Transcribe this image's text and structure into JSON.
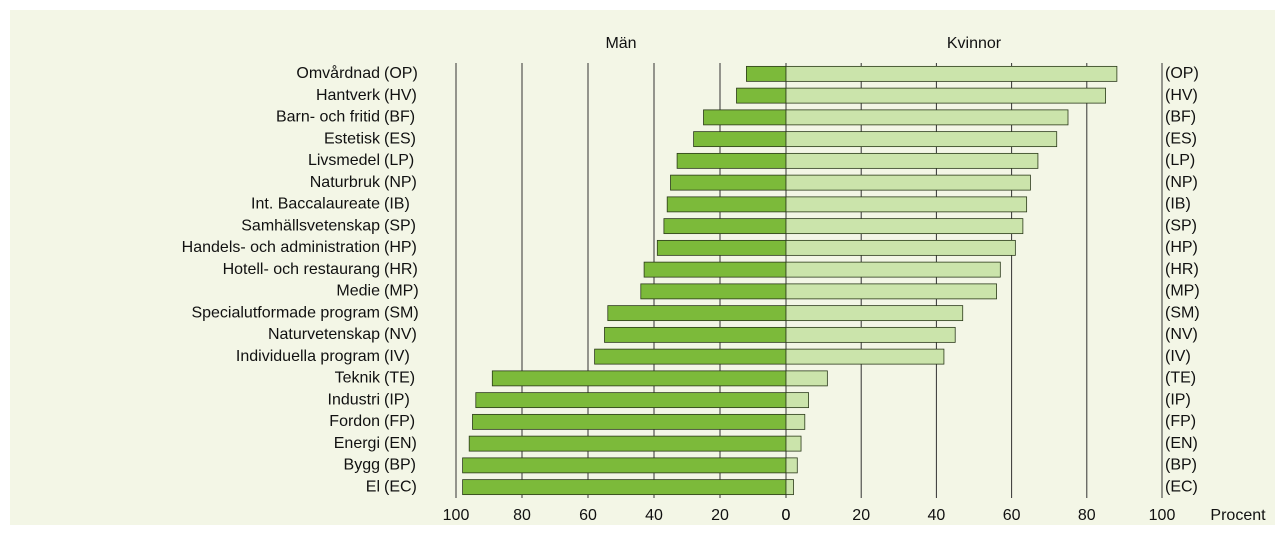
{
  "chart_data": {
    "type": "butterfly-bar",
    "categories": [
      "Omvårdnad",
      "Hantverk",
      "Barn- och fritid",
      "Estetisk",
      "Livsmedel",
      "Naturbruk",
      "Int. Baccalaureate",
      "Samhällsvetenskap",
      "Handels- och administration",
      "Hotell- och restaurang",
      "Medie",
      "Specialutformade program",
      "Naturvetenskap",
      "Individuella program",
      "Teknik",
      "Industri",
      "Fordon",
      "Energi",
      "Bygg",
      "El"
    ],
    "codes": [
      "(OP)",
      "(HV)",
      "(BF)",
      "(ES)",
      "(LP)",
      "(NP)",
      "(IB)",
      "(SP)",
      "(HP)",
      "(HR)",
      "(MP)",
      "(SM)",
      "(NV)",
      "(IV)",
      "(TE)",
      "(IP)",
      "(FP)",
      "(EN)",
      "(BP)",
      "(EC)"
    ],
    "series": [
      {
        "name": "Män",
        "color": "#7cba3a",
        "side": "left",
        "xlim": [
          0,
          100
        ],
        "xticks": [
          100,
          80,
          60,
          40,
          20,
          0
        ],
        "values": [
          12,
          15,
          25,
          28,
          33,
          35,
          36,
          37,
          39,
          43,
          44,
          54,
          55,
          58,
          89,
          94,
          95,
          96,
          98,
          98
        ]
      },
      {
        "name": "Kvinnor",
        "color": "#cbe4ab",
        "side": "right",
        "xlim": [
          0,
          100
        ],
        "xticks": [
          0,
          20,
          40,
          60,
          80,
          100
        ],
        "values": [
          88,
          85,
          75,
          72,
          67,
          65,
          64,
          63,
          61,
          57,
          56,
          47,
          45,
          42,
          11,
          6,
          5,
          4,
          3,
          2
        ]
      }
    ],
    "xlabel": "Procent",
    "grid": true
  }
}
